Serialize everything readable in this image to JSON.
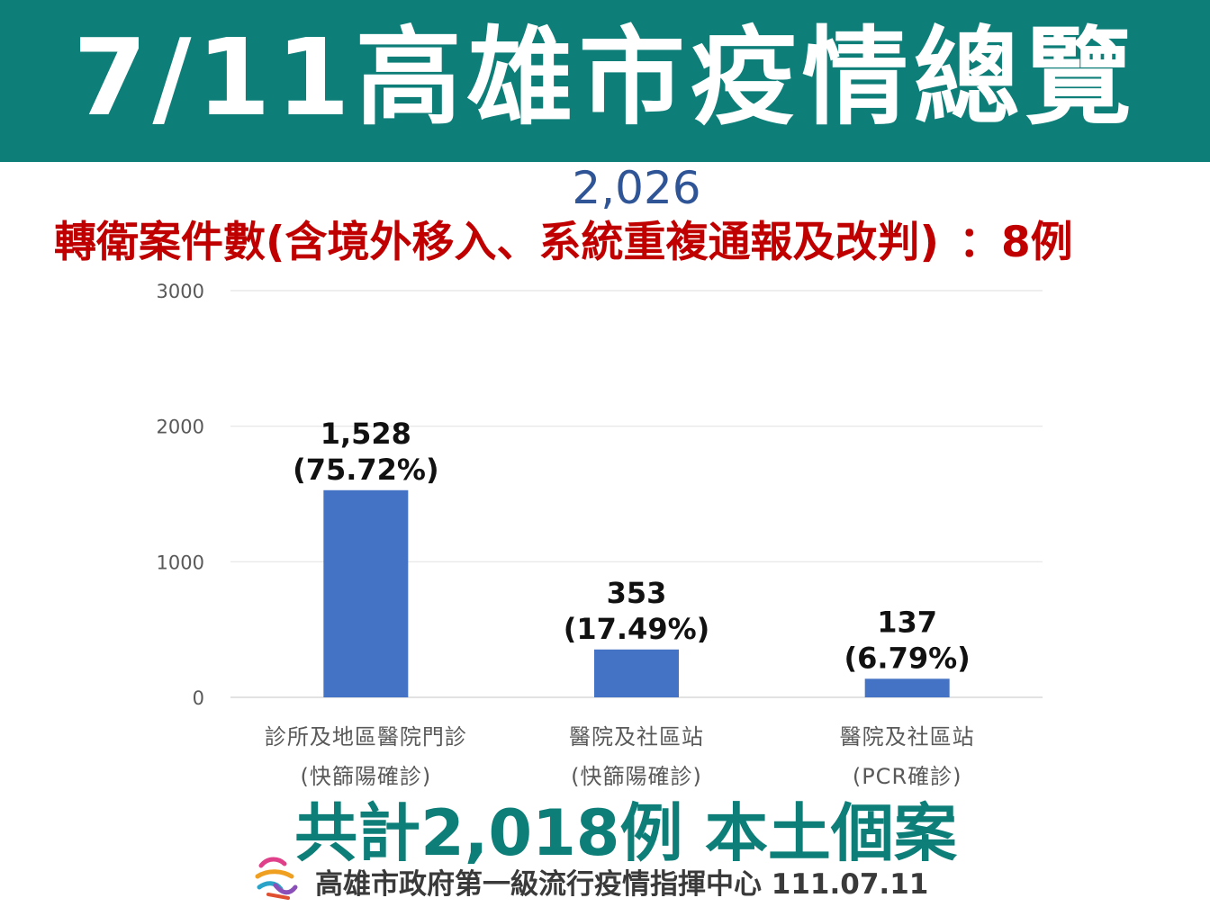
{
  "header": {
    "title": "7/11高雄市疫情總覽"
  },
  "total_cases": "2,026",
  "referral_note": {
    "label": "轉衛案件數(含境外移入、系統重複通報及改判)",
    "value": "：8例"
  },
  "chart_data": {
    "type": "bar",
    "categories": [
      [
        "診所及地區醫院門診",
        "(快篩陽確診)"
      ],
      [
        "醫院及社區站",
        "(快篩陽確診)"
      ],
      [
        "醫院及社區站",
        "(PCR確診)"
      ]
    ],
    "values": [
      1528,
      353,
      137
    ],
    "data_labels": [
      [
        "1,528",
        "(75.72%)"
      ],
      [
        "353",
        "(17.49%)"
      ],
      [
        "137",
        "(6.79%)"
      ]
    ],
    "y_ticks": [
      "0",
      "1000",
      "2000",
      "3000"
    ],
    "ylim": [
      0,
      3000
    ],
    "grid": true,
    "bar_color": "#4472c4"
  },
  "summary": "共計2,018例 本土個案",
  "footer": {
    "org": "高雄市政府第一級流行疫情指揮中心 111.07.11",
    "logo_icon": "kaohsiung-city-logo-icon"
  },
  "colors": {
    "banner": "#0d7e78",
    "referral": "#c00000",
    "total": "#2f5597",
    "summary": "#0d7e78"
  }
}
